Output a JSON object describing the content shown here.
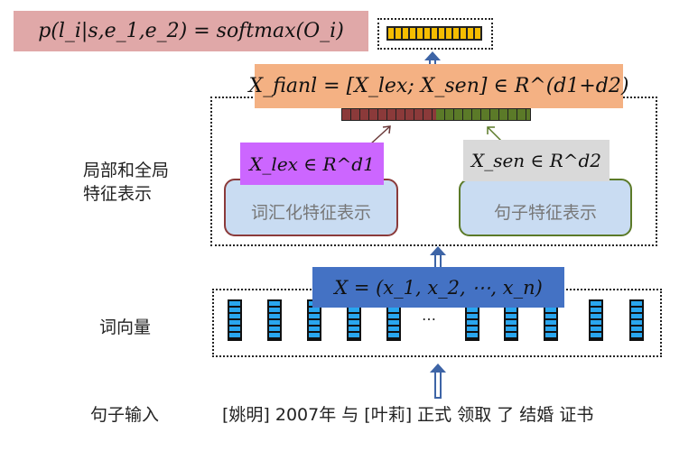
{
  "top": {
    "formula": "p(l_i|s,e_1,e_2) = softmax(O_i)",
    "bar_color": "#f5bd00",
    "box_color": "#e0a8a8"
  },
  "final": {
    "formula": "X_fianl = [X_lex; X_sen] ∈ R^(d1+d2)",
    "box_color": "#f4b183",
    "lex_color": "#8b3a3a",
    "sen_color": "#5b7a28"
  },
  "local_global": {
    "label_line1": "局部和全局",
    "label_line2": "特征表示",
    "lex_formula": "X_lex ∈ R^d1",
    "sen_formula": "X_sen ∈ R^d2",
    "lex_box": "词汇化特征表示",
    "sen_box": "句子特征表示"
  },
  "word_vectors": {
    "label": "词向量",
    "formula": "X = (x_1, x_2, ⋯, x_n)",
    "ellipsis": "…",
    "box_color": "#4472c4"
  },
  "input": {
    "label": "句子输入",
    "sentence": "[姚明] 2007年 与 [叶莉] 正式 领取 了 结婚 证书"
  }
}
